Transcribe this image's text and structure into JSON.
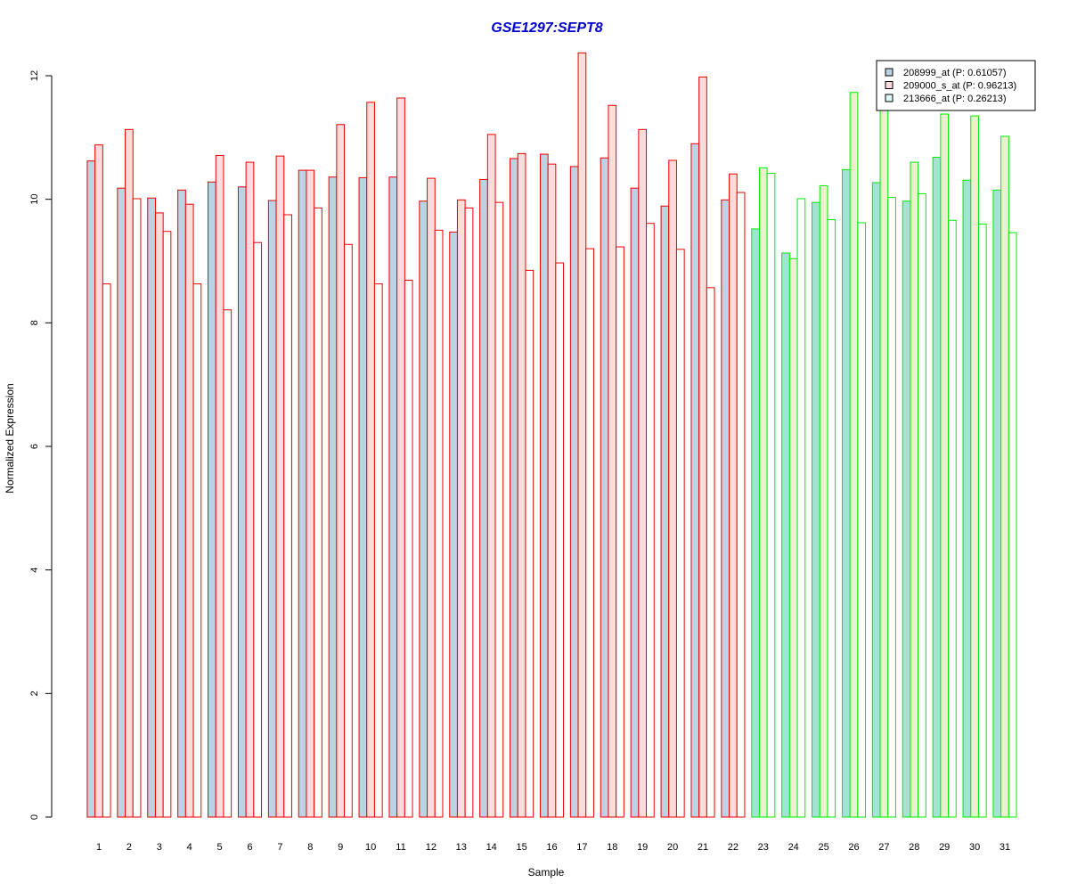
{
  "chart_data": {
    "type": "bar",
    "title": "GSE1297:SEPT8",
    "xlabel": "Sample",
    "ylabel": "Normalized Expression",
    "ylim": [
      0,
      12
    ],
    "yticks": [
      "0",
      "2",
      "4",
      "6",
      "8",
      "10",
      "12"
    ],
    "grid": false,
    "legend_position": "top-right",
    "categories": [
      "1",
      "2",
      "3",
      "4",
      "5",
      "6",
      "7",
      "8",
      "9",
      "10",
      "11",
      "12",
      "13",
      "14",
      "15",
      "16",
      "17",
      "18",
      "19",
      "20",
      "21",
      "22",
      "23",
      "24",
      "25",
      "26",
      "27",
      "28",
      "29",
      "30",
      "31"
    ],
    "group_sizes": [
      22,
      9
    ],
    "group_border_colors": [
      "#ee0000",
      "#00ee00"
    ],
    "series": [
      {
        "name": "208999_at (P: 0.61057)",
        "fills": [
          "#bcd3e3",
          "#a3e3d3"
        ],
        "legend_fill": "#bcd3e3",
        "values": [
          10.62,
          10.18,
          10.02,
          10.15,
          10.28,
          10.2,
          9.98,
          10.47,
          10.36,
          10.35,
          10.36,
          9.97,
          9.47,
          10.32,
          10.66,
          10.73,
          10.53,
          10.67,
          10.18,
          9.89,
          10.9,
          9.99,
          9.52,
          9.13,
          9.95,
          10.48,
          10.27,
          9.97,
          10.68,
          10.31,
          10.15
        ]
      },
      {
        "name": "209000_s_at (P: 0.96213)",
        "fills": [
          "#ffdcdc",
          "#eaf0d0"
        ],
        "legend_fill": "#ffdcdc",
        "values": [
          10.88,
          11.13,
          9.78,
          9.92,
          10.71,
          10.6,
          10.7,
          10.47,
          11.21,
          11.57,
          11.64,
          10.34,
          9.99,
          11.05,
          10.74,
          10.57,
          12.37,
          11.52,
          11.13,
          10.63,
          11.98,
          10.41,
          10.51,
          9.04,
          10.22,
          11.73,
          11.65,
          10.6,
          11.38,
          11.35,
          11.02
        ]
      },
      {
        "name": "213666_at (P: 0.26213)",
        "fills": [
          "#ffffff",
          "#ffffff"
        ],
        "legend_fill": "#ddf6f6",
        "values": [
          8.63,
          10.01,
          9.48,
          8.63,
          8.21,
          9.3,
          9.75,
          9.86,
          9.27,
          8.63,
          8.69,
          9.5,
          9.86,
          9.95,
          8.85,
          8.97,
          9.2,
          9.23,
          9.61,
          9.19,
          8.57,
          10.11,
          10.42,
          10.01,
          9.67,
          9.62,
          10.03,
          10.09,
          9.66,
          9.6,
          9.46
        ]
      }
    ]
  }
}
